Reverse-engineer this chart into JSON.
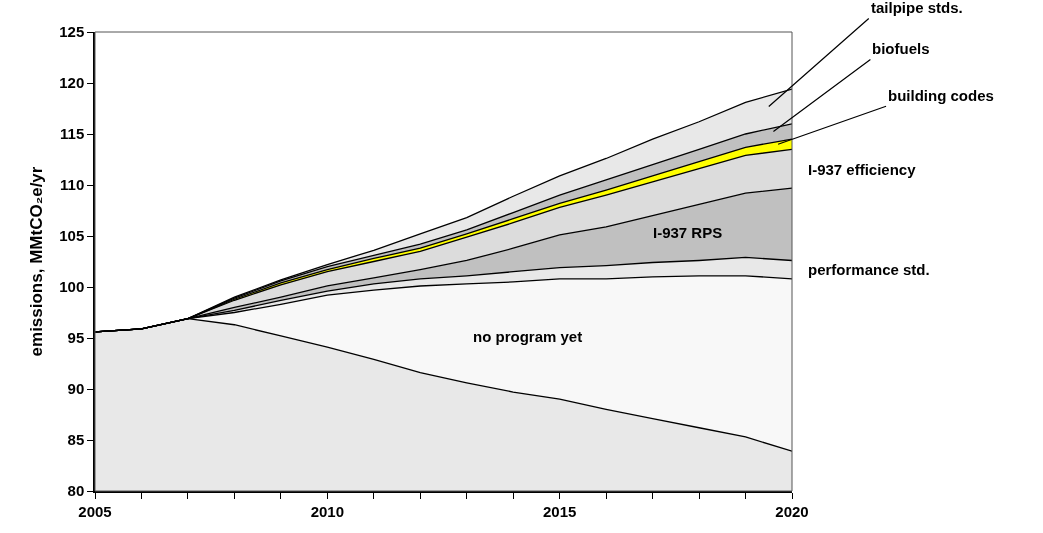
{
  "chart_data": {
    "type": "area",
    "ylabel": "emissions, MMtCO₂e/yr",
    "x": [
      2005,
      2006,
      2007,
      2008,
      2009,
      2010,
      2011,
      2012,
      2013,
      2014,
      2015,
      2016,
      2017,
      2018,
      2019,
      2020
    ],
    "series": [
      {
        "color": "#e8e8e8",
        "values": [
          95.6,
          95.9,
          96.9,
          96.3,
          95.2,
          94.1,
          92.9,
          91.6,
          90.6,
          89.7,
          89.0,
          88.0,
          87.1,
          86.2,
          85.3,
          83.9
        ]
      },
      {
        "name": "no program yet",
        "color": "#f8f8f8",
        "values": [
          95.6,
          95.9,
          96.9,
          97.5,
          98.3,
          99.2,
          99.7,
          100.1,
          100.3,
          100.5,
          100.8,
          100.8,
          101.0,
          101.1,
          101.1,
          100.8
        ]
      },
      {
        "name": "performance std.",
        "color": "#e8e8e8",
        "values": [
          95.6,
          95.9,
          96.9,
          97.7,
          98.7,
          99.6,
          100.3,
          100.8,
          101.1,
          101.5,
          101.9,
          102.1,
          102.4,
          102.6,
          102.9,
          102.6
        ]
      },
      {
        "name": "I-937 RPS",
        "color": "#c0c0c0",
        "values": [
          95.6,
          95.9,
          96.9,
          98.0,
          99.0,
          100.1,
          100.9,
          101.7,
          102.6,
          103.8,
          105.1,
          105.9,
          107.0,
          108.1,
          109.2,
          109.7
        ]
      },
      {
        "name": "I-937 efficiency",
        "color": "#dcdcdc",
        "values": [
          95.6,
          95.9,
          96.9,
          98.7,
          100.2,
          101.5,
          102.5,
          103.5,
          104.9,
          106.3,
          107.8,
          109.0,
          110.3,
          111.6,
          112.9,
          113.5
        ]
      },
      {
        "name": "building codes",
        "color": "#ffff00",
        "values": [
          95.6,
          95.9,
          96.9,
          98.8,
          100.4,
          101.7,
          102.8,
          103.8,
          105.2,
          106.7,
          108.2,
          109.5,
          110.9,
          112.3,
          113.7,
          114.5
        ]
      },
      {
        "name": "biofuels",
        "color": "#c0c0c0",
        "values": [
          95.6,
          95.9,
          96.9,
          98.9,
          100.6,
          102.0,
          103.1,
          104.2,
          105.6,
          107.3,
          109.0,
          110.5,
          112.0,
          113.5,
          115.0,
          116.0
        ]
      },
      {
        "name": "tailpipe stds.",
        "color": "#e8e8e8",
        "values": [
          95.6,
          95.9,
          96.9,
          99.0,
          100.7,
          102.2,
          103.6,
          105.2,
          106.8,
          108.9,
          110.9,
          112.6,
          114.5,
          116.2,
          118.1,
          119.4
        ]
      }
    ],
    "xlim": [
      2005,
      2020
    ],
    "ylim": [
      80,
      125
    ],
    "xticks": [
      2005,
      {
        "value": 2006,
        "label": null
      },
      {
        "value": 2007,
        "label": null
      },
      {
        "value": 2008,
        "label": null
      },
      {
        "value": 2009,
        "label": null
      },
      2010,
      {
        "value": 2011,
        "label": null
      },
      {
        "value": 2012,
        "label": null
      },
      {
        "value": 2013,
        "label": null
      },
      {
        "value": 2014,
        "label": null
      },
      2015,
      {
        "value": 2016,
        "label": null
      },
      {
        "value": 2017,
        "label": null
      },
      {
        "value": 2018,
        "label": null
      },
      {
        "value": 2019,
        "label": null
      },
      2020
    ],
    "yticks": [
      80,
      85,
      90,
      95,
      100,
      105,
      110,
      115,
      120,
      125
    ],
    "legend": false
  }
}
